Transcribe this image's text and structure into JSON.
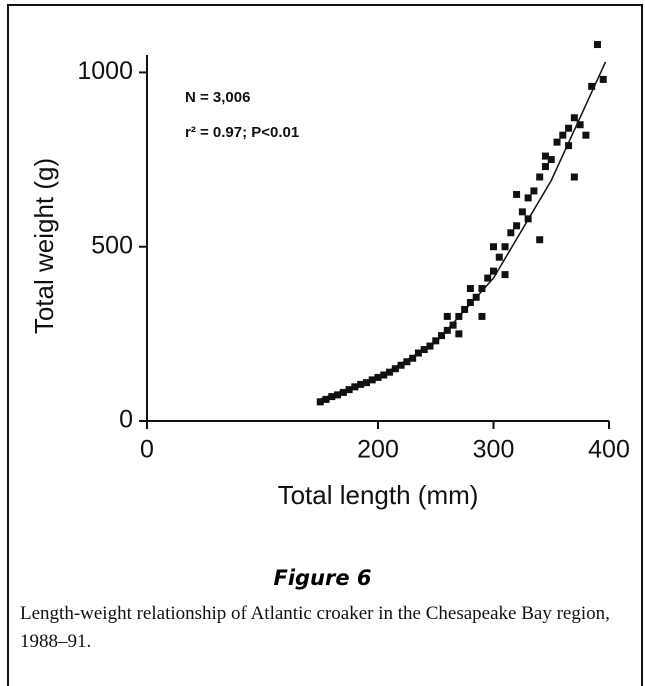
{
  "chart_data": {
    "type": "scatter",
    "xlabel": "Total length (mm)",
    "ylabel": "Total weight (g)",
    "annotations": [
      "N = 3,006",
      "r² = 0.97; P<0.01"
    ],
    "figure_label": "Figure 6",
    "caption": "Length-weight relationship of Atlantic croaker in the Chesapeake Bay region, 1988–91.",
    "xlim": [
      0,
      400
    ],
    "ylim": [
      0,
      1050
    ],
    "xticks": [
      0,
      200,
      300,
      400
    ],
    "yticks": [
      0,
      500,
      1000
    ],
    "color": "#111111",
    "x": [
      150,
      155,
      160,
      165,
      170,
      175,
      180,
      185,
      190,
      195,
      200,
      205,
      210,
      215,
      220,
      225,
      230,
      235,
      240,
      245,
      250,
      255,
      260,
      265,
      270,
      275,
      280,
      285,
      290,
      295,
      300,
      305,
      310,
      315,
      320,
      325,
      330,
      335,
      340,
      345,
      350,
      355,
      360,
      365,
      370,
      375,
      380,
      385,
      390,
      395,
      260,
      270,
      280,
      290,
      300,
      310,
      320,
      330,
      340,
      345,
      370,
      365
    ],
    "values": [
      55,
      62,
      70,
      75,
      82,
      90,
      98,
      105,
      110,
      118,
      125,
      132,
      140,
      150,
      160,
      170,
      180,
      195,
      205,
      215,
      230,
      245,
      260,
      275,
      300,
      320,
      340,
      355,
      380,
      410,
      430,
      470,
      500,
      540,
      560,
      600,
      640,
      660,
      700,
      730,
      750,
      800,
      820,
      840,
      870,
      850,
      820,
      960,
      1080,
      980,
      300,
      250,
      380,
      300,
      500,
      420,
      650,
      580,
      520,
      760,
      700,
      790
    ],
    "fit": {
      "x": [
        148,
        200,
        250,
        300,
        350,
        397
      ],
      "values": [
        60,
        125,
        225,
        410,
        690,
        1030
      ]
    }
  }
}
